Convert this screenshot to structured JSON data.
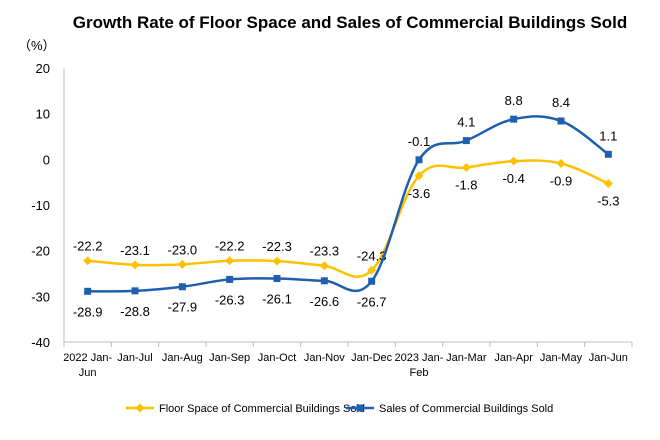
{
  "chart_data": {
    "type": "line",
    "title": "Growth Rate of Floor Space and Sales of Commercial Buildings Sold",
    "ylabel": "（%）",
    "ylim": [
      -40,
      20
    ],
    "yticks": [
      20,
      10,
      0,
      -10,
      -20,
      -30,
      -40
    ],
    "grid": false,
    "legend_position": "bottom",
    "categories": [
      [
        "2022 Jan-",
        "Jun"
      ],
      [
        "Jan-Jul"
      ],
      [
        "Jan-Aug"
      ],
      [
        "Jan-Sep"
      ],
      [
        "Jan-Oct"
      ],
      [
        "Jan-Nov"
      ],
      [
        "Jan-Dec"
      ],
      [
        "2023 Jan-",
        "Feb"
      ],
      [
        "Jan-Mar"
      ],
      [
        "Jan-Apr"
      ],
      [
        "Jan-May"
      ],
      [
        "Jan-Jun"
      ]
    ],
    "series": [
      {
        "name": "Floor Space of Commercial Buildings Sold",
        "color": "#FFC000",
        "marker": "diamond",
        "values": [
          -22.2,
          -23.1,
          -23.0,
          -22.2,
          -22.3,
          -23.3,
          -24.3,
          -3.6,
          -1.8,
          -0.4,
          -0.9,
          -5.3
        ],
        "labels": [
          "-22.2",
          "-23.1",
          "-23.0",
          "-22.2",
          "-22.3",
          "-23.3",
          "-24.3",
          "-3.6",
          "-1.8",
          "-0.4",
          "-0.9",
          "-5.3"
        ]
      },
      {
        "name": "Sales of Commercial Buildings Sold",
        "color": "#1F5FAF",
        "marker": "square",
        "values": [
          -28.9,
          -28.8,
          -27.9,
          -26.3,
          -26.1,
          -26.6,
          -26.7,
          -0.1,
          4.1,
          8.8,
          8.4,
          1.1
        ],
        "labels": [
          "-28.9",
          "-28.8",
          "-27.9",
          "-26.3",
          "-26.1",
          "-26.6",
          "-26.7",
          "-0.1",
          "4.1",
          "8.8",
          "8.4",
          "1.1"
        ]
      }
    ]
  }
}
